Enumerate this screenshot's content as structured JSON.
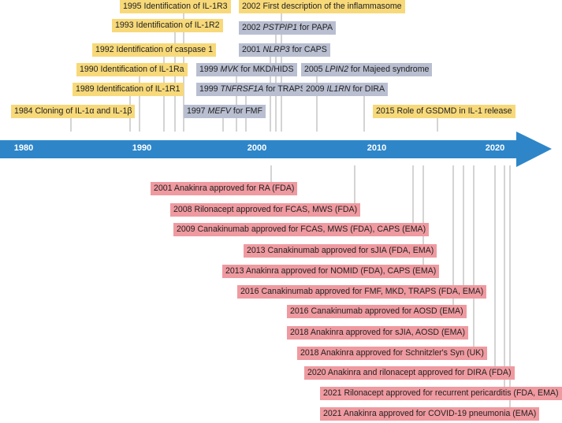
{
  "axis": {
    "years": [
      "1980",
      "1990",
      "2000",
      "2010",
      "2020"
    ],
    "color": "#2e86c9",
    "line_color": "#aaaaaa"
  },
  "top_events": [
    {
      "text": "1995 Identification of IL-1R3",
      "color": "yellow"
    },
    {
      "text": "2002 First description of the inflammasome",
      "color": "yellow"
    },
    {
      "text": "1993 Identification of IL-1R2",
      "color": "yellow"
    },
    {
      "prefix": "2002 ",
      "italic": "PSTPIP1",
      "suffix": " for PAPA",
      "color": "gray"
    },
    {
      "text": "1992 Identification of caspase 1",
      "color": "yellow"
    },
    {
      "prefix": "2001 ",
      "italic": "NLRP3",
      "suffix": " for CAPS",
      "color": "gray"
    },
    {
      "text": "1990 Identification of IL-1Ra",
      "color": "yellow"
    },
    {
      "prefix": "1999 ",
      "italic": "MVK",
      "suffix": " for MKD/HIDS",
      "color": "gray"
    },
    {
      "prefix": "2005 ",
      "italic": "LPIN2",
      "suffix": " for Majeed syndrome",
      "color": "gray"
    },
    {
      "text": "1989 Identification of IL-1R1",
      "color": "yellow"
    },
    {
      "prefix": "1999 ",
      "italic": "TNFRSF1A",
      "suffix": " for TRAPS",
      "color": "gray"
    },
    {
      "prefix": "2009 ",
      "italic": "IL1RN",
      "suffix": " for DIRA",
      "color": "gray"
    },
    {
      "text": "1984 Cloning of IL-1α and IL-1β",
      "color": "yellow"
    },
    {
      "prefix": "1997 ",
      "italic": "MEFV",
      "suffix": " for FMF",
      "color": "gray"
    },
    {
      "text": "2015 Role of GSDMD in IL-1 release",
      "color": "yellow"
    }
  ],
  "bottom_events": [
    {
      "text": "2001 Anakinra  approved for RA (FDA)"
    },
    {
      "text": "2008 Rilonacept approved  for FCAS, MWS (FDA)"
    },
    {
      "text": "2009 Canakinumab approved for FCAS, MWS (FDA), CAPS (EMA)"
    },
    {
      "text": "2013 Canakinumab approved for sJIA (FDA, EMA)"
    },
    {
      "text": "2013 Anakinra approved for NOMID (FDA), CAPS (EMA)"
    },
    {
      "text": "2016 Canakinumab approved for FMF, MKD, TRAPS (FDA, EMA)"
    },
    {
      "text": "2016 Canakinumab approved for AOSD (EMA)"
    },
    {
      "text": "2018 Anakinra approved for sJIA, AOSD (EMA)"
    },
    {
      "text": "2018 Anakinra approved for Schnitzler's Syn (UK)"
    },
    {
      "text": "2020 Anakinra and rilonacept approved for DIRA (FDA)"
    },
    {
      "text": "2021 Rilonacept approved for recurrent pericarditis (FDA, EMA)"
    },
    {
      "text": "2021 Anakinra approved for COVID-19 pneumonia (EMA)"
    }
  ]
}
